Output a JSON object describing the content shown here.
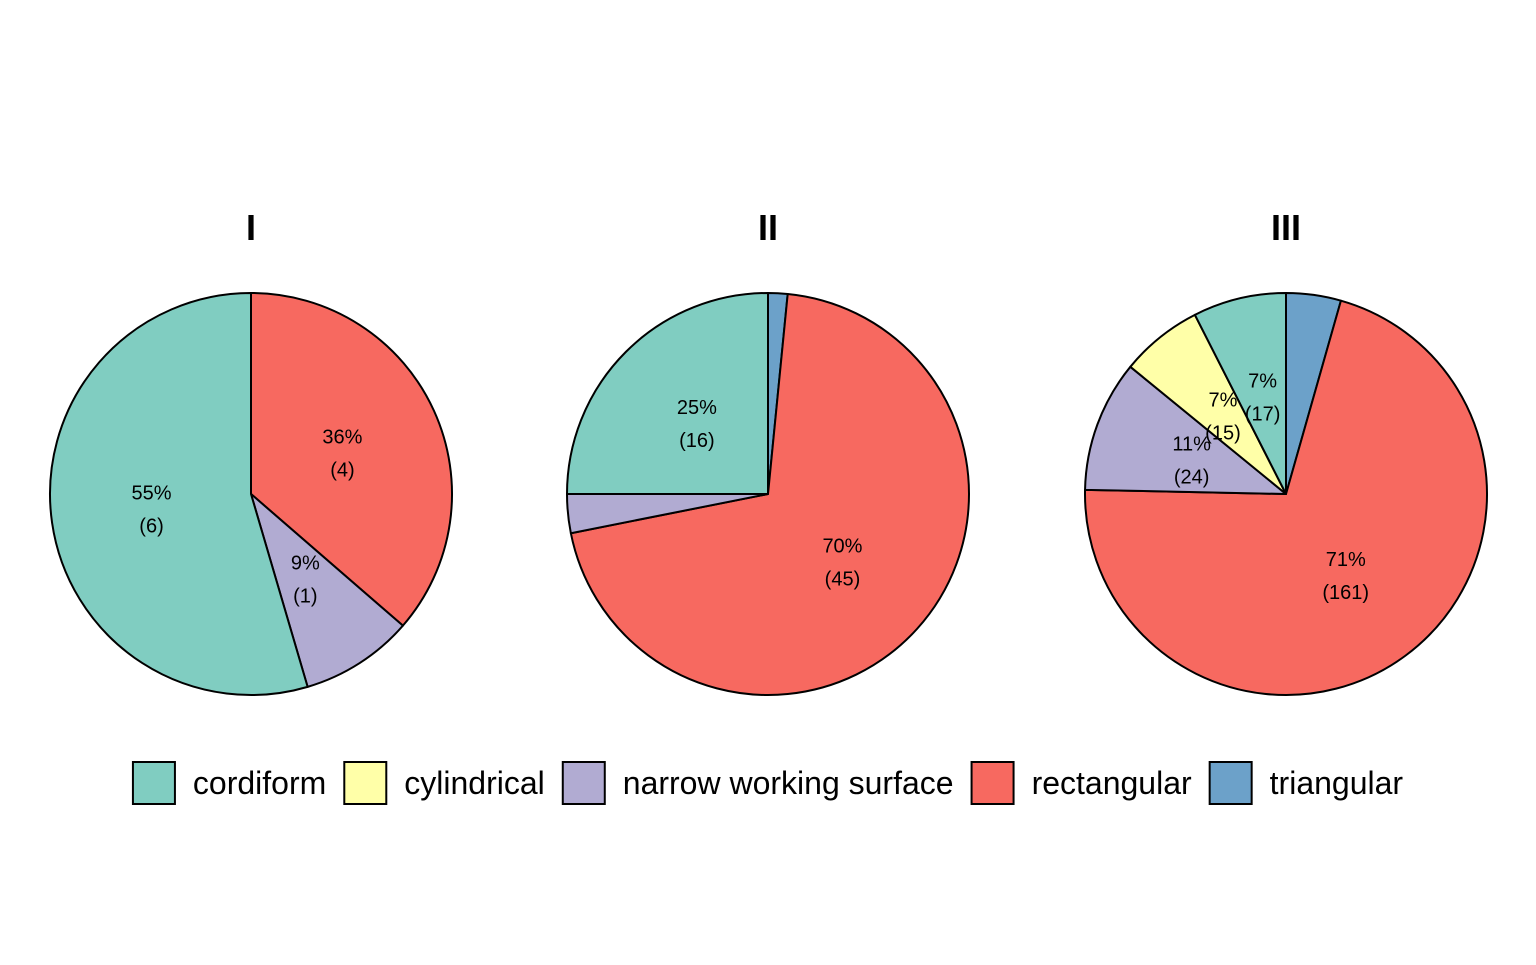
{
  "chart_data": [
    {
      "type": "pie",
      "title": "I",
      "slices": [
        {
          "name": "triangular",
          "value": 0,
          "percent_label": "",
          "count_label": ""
        },
        {
          "name": "rectangular",
          "value": 4,
          "percent_label": "36%",
          "count_label": "(4)"
        },
        {
          "name": "narrow working surface",
          "value": 1,
          "percent_label": "9%",
          "count_label": "(1)"
        },
        {
          "name": "cylindrical",
          "value": 0,
          "percent_label": "",
          "count_label": ""
        },
        {
          "name": "cordiform",
          "value": 6,
          "percent_label": "55%",
          "count_label": "(6)"
        }
      ]
    },
    {
      "type": "pie",
      "title": "II",
      "slices": [
        {
          "name": "triangular",
          "value": 1,
          "percent_label": "",
          "count_label": ""
        },
        {
          "name": "rectangular",
          "value": 45,
          "percent_label": "70%",
          "count_label": "(45)"
        },
        {
          "name": "narrow working surface",
          "value": 2,
          "percent_label": "",
          "count_label": ""
        },
        {
          "name": "cylindrical",
          "value": 0,
          "percent_label": "",
          "count_label": ""
        },
        {
          "name": "cordiform",
          "value": 16,
          "percent_label": "25%",
          "count_label": "(16)"
        }
      ]
    },
    {
      "type": "pie",
      "title": "III",
      "slices": [
        {
          "name": "triangular",
          "value": 10,
          "percent_label": "",
          "count_label": ""
        },
        {
          "name": "rectangular",
          "value": 161,
          "percent_label": "71%",
          "count_label": "(161)"
        },
        {
          "name": "narrow working surface",
          "value": 24,
          "percent_label": "11%",
          "count_label": "(24)"
        },
        {
          "name": "cylindrical",
          "value": 15,
          "percent_label": "7%",
          "count_label": "(15)"
        },
        {
          "name": "cordiform",
          "value": 17,
          "percent_label": "7%",
          "count_label": "(17)"
        }
      ]
    }
  ],
  "legend": {
    "placement": "bottom",
    "items": [
      {
        "label": "cordiform",
        "color": "#80CDC1"
      },
      {
        "label": "cylindrical",
        "color": "#FFFFA8"
      },
      {
        "label": "narrow working surface",
        "color": "#B1ABD2"
      },
      {
        "label": "rectangular",
        "color": "#F76960"
      },
      {
        "label": "triangular",
        "color": "#6CA1C9"
      }
    ]
  }
}
